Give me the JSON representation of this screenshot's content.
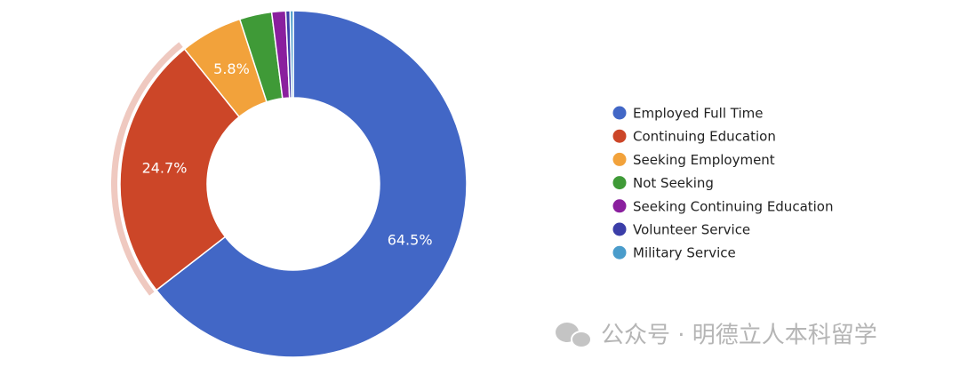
{
  "chart_data": {
    "type": "donut",
    "categories": [
      "Employed Full Time",
      "Continuing Education",
      "Seeking Employment",
      "Not Seeking",
      "Seeking Continuing Education",
      "Volunteer Service",
      "Military Service"
    ],
    "values": [
      64.5,
      24.7,
      5.8,
      3.0,
      1.3,
      0.4,
      0.3
    ],
    "value_labels": [
      "64.5%",
      "24.7%",
      "5.8%",
      null,
      null,
      null,
      null
    ],
    "colors": [
      "#4267c6",
      "#cc4628",
      "#f2a23b",
      "#3f9a37",
      "#8a1f9e",
      "#3b3ea8",
      "#4a9ccb"
    ],
    "legend": "right",
    "watermark": "公众号 · 明德立人本科留学"
  }
}
